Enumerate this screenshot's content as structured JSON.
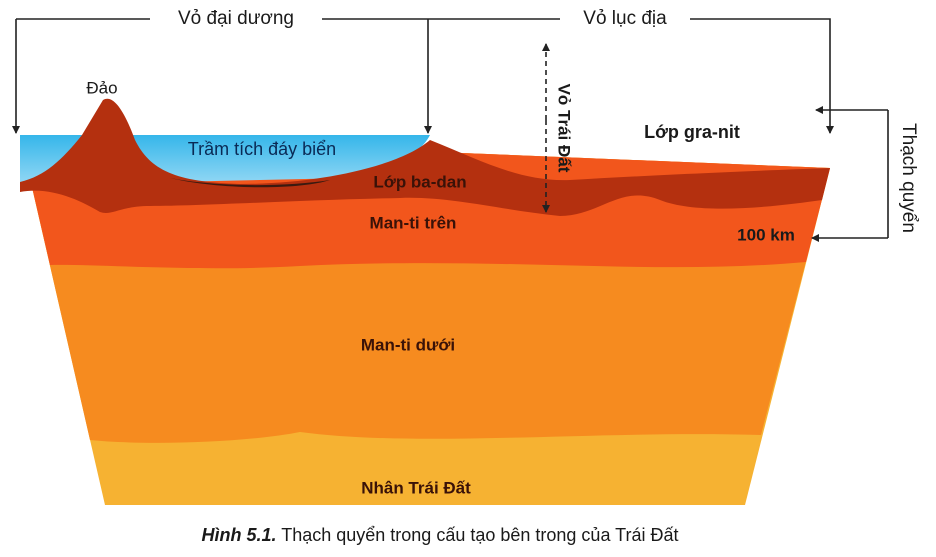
{
  "labels": {
    "oceanic_crust": "Vỏ đại dương",
    "continental_crust": "Vỏ lục địa",
    "island": "Đảo",
    "sediment": "Trầm tích đáy biển",
    "basalt": "Lớp ba-dan",
    "earth_crust": "Vỏ Trái Đất",
    "granite": "Lớp gra-nit",
    "lithosphere": "Thạch quyển",
    "upper_mantle": "Man-ti trên",
    "depth": "100 km",
    "lower_mantle": "Man-ti dưới",
    "core": "Nhân Trái Đất"
  },
  "caption": {
    "number": "Hình 5.1.",
    "text": "Thạch quyển trong cấu tạo bên trong của Trái Đất"
  }
}
